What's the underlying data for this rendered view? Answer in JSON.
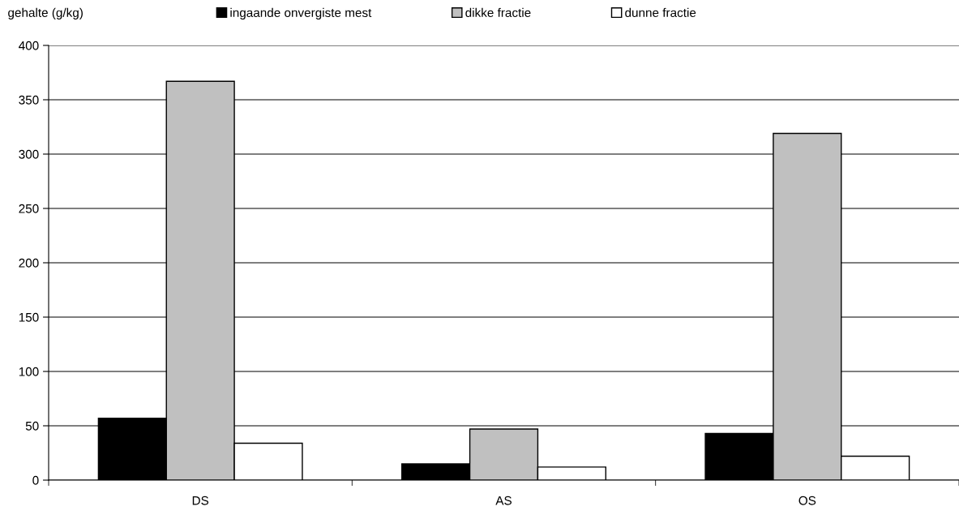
{
  "chart_data": {
    "type": "bar",
    "ylabel": "gehalte (g/kg)",
    "categories": [
      "DS",
      "AS",
      "OS"
    ],
    "series": [
      {
        "name": "ingaande onvergiste mest",
        "color": "#000000",
        "values": [
          57,
          15,
          43
        ]
      },
      {
        "name": "dikke fractie",
        "color": "#c0c0c0",
        "values": [
          367,
          47,
          319
        ]
      },
      {
        "name": "dunne fractie",
        "color": "#ffffff",
        "values": [
          34,
          12,
          22
        ]
      }
    ],
    "ylim": [
      0,
      400
    ],
    "yticks": [
      0,
      50,
      100,
      150,
      200,
      250,
      300,
      350,
      400
    ],
    "grid": "y",
    "legend": "top"
  }
}
